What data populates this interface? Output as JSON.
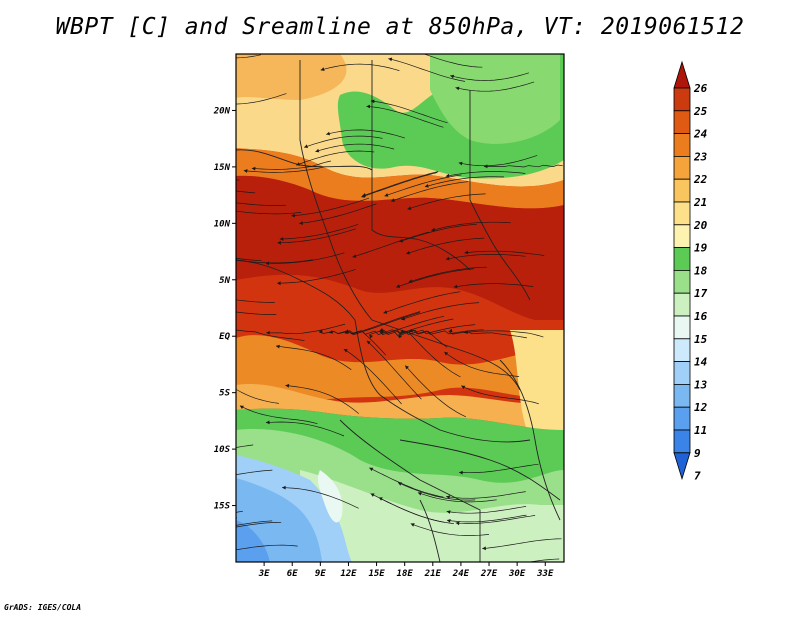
{
  "title": "WBPT [C] and Sreamline at 850hPa, VT: 2019061512",
  "footer": "GrADS: IGES/COLA",
  "map": {
    "lat_labels": [
      "20N",
      "15N",
      "10N",
      "5N",
      "EQ",
      "5S",
      "10S",
      "15S"
    ],
    "lat_values": [
      20,
      15,
      10,
      5,
      0,
      -5,
      -10,
      -15
    ],
    "lon_labels": [
      "3E",
      "6E",
      "9E",
      "12E",
      "15E",
      "18E",
      "21E",
      "24E",
      "27E",
      "30E",
      "33E"
    ],
    "lon_values": [
      3,
      6,
      9,
      12,
      15,
      18,
      21,
      24,
      27,
      30,
      33
    ],
    "lat_range": [
      -20,
      25
    ],
    "lon_range": [
      0,
      35
    ]
  },
  "colorbar": {
    "labels": [
      "7",
      "9",
      "11",
      "12",
      "13",
      "14",
      "15",
      "16",
      "17",
      "18",
      "19",
      "20",
      "21",
      "22",
      "23",
      "24",
      "25",
      "26"
    ],
    "colors": [
      "#1f62d6",
      "#3a84e8",
      "#5aa0ee",
      "#7ab8f2",
      "#a0d0f8",
      "#cdeafc",
      "#e9f8f2",
      "#cdf0c0",
      "#9ae08a",
      "#5ccb55",
      "#fdf2b0",
      "#fce08a",
      "#f9c55e",
      "#f4a43a",
      "#ec7d1e",
      "#e05a14",
      "#cc3a10",
      "#b0150a"
    ]
  }
}
